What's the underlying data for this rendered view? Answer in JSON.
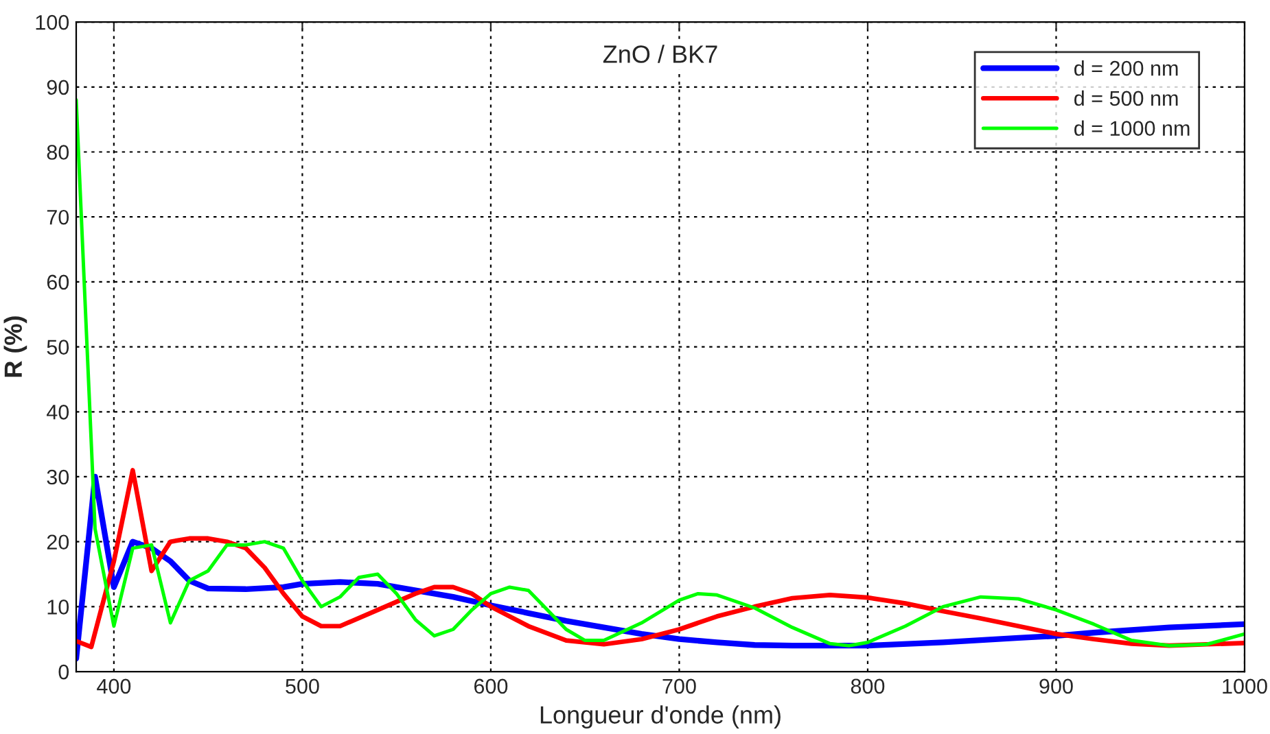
{
  "chart_data": {
    "type": "line",
    "title": "ZnO / BK7",
    "xlabel": "Longueur d'onde (nm)",
    "ylabel": "R (%)",
    "xlim": [
      380,
      1000
    ],
    "xticks": [
      400,
      500,
      600,
      700,
      800,
      900,
      1000
    ],
    "ylim": [
      0,
      100
    ],
    "yticks": [
      0,
      10,
      20,
      30,
      40,
      50,
      60,
      70,
      80,
      90,
      100
    ],
    "grid": true,
    "legend": "top right",
    "line_style": "solid",
    "marker": "none",
    "series": [
      {
        "name": "d = 200 nm",
        "color": "#0000ff",
        "x": [
          380,
          390,
          400,
          410,
          420,
          430,
          440,
          450,
          470,
          490,
          500,
          520,
          540,
          560,
          580,
          600,
          620,
          640,
          660,
          680,
          700,
          720,
          740,
          760,
          800,
          840,
          880,
          900,
          920,
          960,
          1000
        ],
        "values": [
          2,
          30,
          13,
          20,
          19,
          17,
          14,
          12.8,
          12.7,
          13,
          13.5,
          13.8,
          13.5,
          12.5,
          11.5,
          10.2,
          9,
          7.8,
          6.8,
          5.8,
          5,
          4.5,
          4.1,
          4,
          4,
          4.5,
          5.2,
          5.5,
          6,
          6.8,
          7.3
        ]
      },
      {
        "name": "d = 500 nm",
        "color": "#ff0000",
        "x": [
          380,
          388,
          400,
          410,
          420,
          430,
          440,
          450,
          460,
          470,
          480,
          490,
          500,
          510,
          520,
          540,
          560,
          570,
          580,
          590,
          600,
          620,
          640,
          660,
          680,
          700,
          720,
          740,
          760,
          780,
          800,
          820,
          840,
          860,
          880,
          900,
          920,
          940,
          960,
          980,
          1000
        ],
        "values": [
          4.7,
          3.8,
          17,
          31,
          15.5,
          20,
          20.5,
          20.5,
          20,
          19,
          16,
          12,
          8.5,
          7,
          7,
          9.5,
          12,
          13,
          13,
          12,
          10,
          7,
          4.8,
          4.2,
          5,
          6.5,
          8.5,
          10,
          11.3,
          11.8,
          11.4,
          10.5,
          9.3,
          8.2,
          7,
          5.8,
          5,
          4.3,
          4,
          4.2,
          4.4
        ]
      },
      {
        "name": "d = 1000 nm",
        "color": "#00ff00",
        "x": [
          380,
          390,
          400,
          410,
          420,
          430,
          440,
          450,
          460,
          470,
          480,
          490,
          500,
          510,
          520,
          530,
          540,
          550,
          560,
          570,
          580,
          590,
          600,
          610,
          620,
          630,
          640,
          650,
          660,
          680,
          700,
          710,
          720,
          740,
          760,
          780,
          790,
          800,
          820,
          840,
          860,
          880,
          900,
          920,
          940,
          960,
          980,
          1000
        ],
        "values": [
          88,
          22,
          7,
          19,
          19.5,
          7.5,
          14,
          15.5,
          19.5,
          19.5,
          20,
          19,
          14,
          10,
          11.5,
          14.5,
          15,
          12,
          8,
          5.5,
          6.5,
          9.5,
          12,
          13,
          12.5,
          9.5,
          6.5,
          4.8,
          4.8,
          7.5,
          11,
          12,
          11.8,
          9.8,
          6.8,
          4.3,
          4,
          4.5,
          7,
          10,
          11.5,
          11.2,
          9.5,
          7.3,
          4.8,
          4,
          4.2,
          5.8
        ]
      }
    ]
  }
}
